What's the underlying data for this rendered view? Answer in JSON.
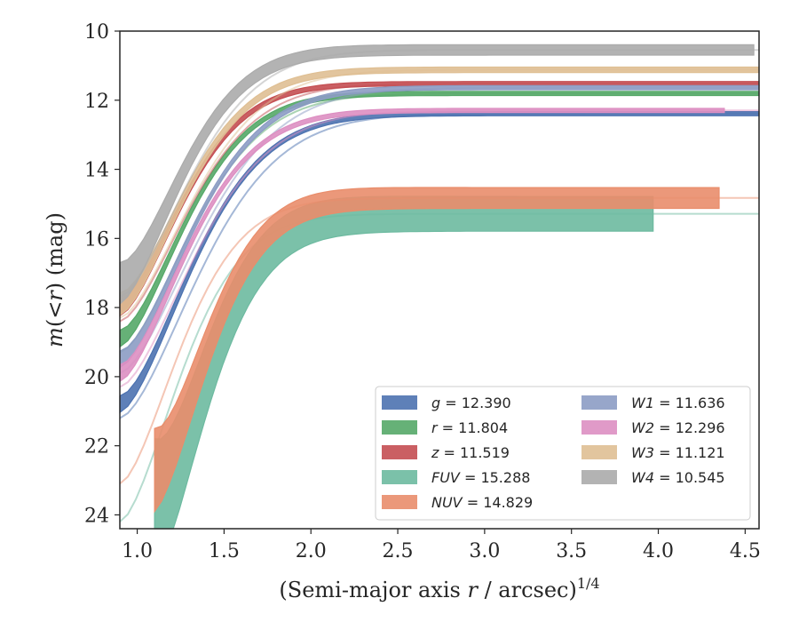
{
  "chart_data": {
    "type": "line",
    "title": "",
    "xlabel_prefix": "(Semi-major axis ",
    "xlabel_var": "r",
    "xlabel_suffix": " / arcsec)",
    "xlabel_exponent": "1/4",
    "ylabel_prefix": "m",
    "ylabel_paren": "(<",
    "ylabel_var": "r",
    "ylabel_suffix": ") (mag)",
    "xlim": [
      0.9,
      4.58
    ],
    "ylim": [
      24.4,
      10.0
    ],
    "y_inverted": true,
    "grid": false,
    "legend_position": "lower-right",
    "xticks": [
      "1.0",
      "1.5",
      "2.0",
      "2.5",
      "3.0",
      "3.5",
      "4.0",
      "4.5"
    ],
    "yticks": [
      "10",
      "12",
      "14",
      "16",
      "18",
      "20",
      "22",
      "24"
    ],
    "series": [
      {
        "name": "g",
        "label_value": "12.390",
        "color": "#4c72b0",
        "x_start": 0.9,
        "m_start": 20.8,
        "m_asym": 12.39,
        "scale": 0.55,
        "power": 1.6,
        "x_end": 4.58,
        "band": 0.06
      },
      {
        "name": "r",
        "label_value": "11.804",
        "color": "#55a868",
        "x_start": 0.9,
        "m_start": 18.9,
        "m_asym": 11.804,
        "scale": 0.5,
        "power": 1.6,
        "x_end": 4.58,
        "band": 0.06
      },
      {
        "name": "z",
        "label_value": "11.519",
        "color": "#c44e52",
        "x_start": 0.9,
        "m_start": 18.0,
        "m_asym": 11.519,
        "scale": 0.48,
        "power": 1.6,
        "x_end": 4.58,
        "band": 0.06
      },
      {
        "name": "FUV",
        "label_value": "15.288",
        "color": "#6dbaa0",
        "x_start": 1.1,
        "m_start": 23.8,
        "m_asym": 15.288,
        "scale": 0.42,
        "power": 1.6,
        "x_end": 3.97,
        "band": 0.5
      },
      {
        "name": "NUV",
        "label_value": "14.829",
        "color": "#e98d6b",
        "x_start": 1.1,
        "m_start": 22.7,
        "m_asym": 14.829,
        "scale": 0.42,
        "power": 1.6,
        "x_end": 4.35,
        "band": 0.3
      },
      {
        "name": "W1",
        "label_value": "11.636",
        "color": "#8c9cc4",
        "x_start": 0.9,
        "m_start": 19.5,
        "m_asym": 11.636,
        "scale": 0.55,
        "power": 1.6,
        "x_end": 4.58,
        "band": 0.06
      },
      {
        "name": "W2",
        "label_value": "12.296",
        "color": "#dd8fc2",
        "x_start": 0.9,
        "m_start": 19.9,
        "m_asym": 12.296,
        "scale": 0.52,
        "power": 1.6,
        "x_end": 4.38,
        "band": 0.06
      },
      {
        "name": "W3",
        "label_value": "11.121",
        "color": "#dfbf93",
        "x_start": 0.9,
        "m_start": 17.9,
        "m_asym": 11.121,
        "scale": 0.5,
        "power": 1.6,
        "x_end": 4.58,
        "band": 0.08
      },
      {
        "name": "W4",
        "label_value": "10.545",
        "color": "#ababab",
        "x_start": 0.9,
        "m_start": 17.3,
        "m_asym": 10.545,
        "scale": 0.48,
        "power": 1.6,
        "x_end": 4.55,
        "band": 0.15
      }
    ],
    "legend_columns": [
      [
        "g",
        "r",
        "z",
        "FUV",
        "NUV"
      ],
      [
        "W1",
        "W2",
        "W3",
        "W4"
      ]
    ]
  }
}
